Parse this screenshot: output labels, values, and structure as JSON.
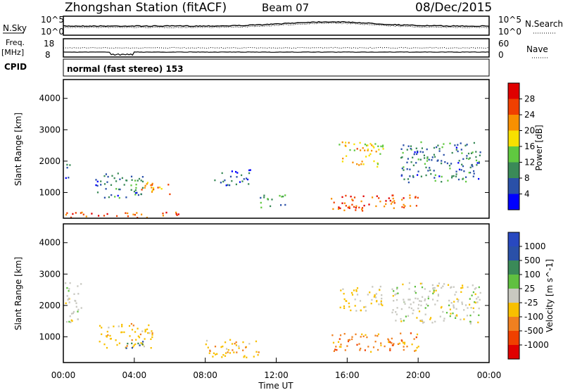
{
  "header": {
    "station": "Zhongshan Station (fitACF)",
    "beam": "Beam 07",
    "date": "08/Dec/2015"
  },
  "top_panels": {
    "noise": {
      "left_label": "N.Sky",
      "right_label": "N.Search",
      "left_ticks": [
        "10^5",
        "10^0"
      ],
      "right_ticks": [
        "10^5",
        "10^0"
      ]
    },
    "freq": {
      "left_label_1": "Freq.",
      "left_label_2": "[MHz]",
      "right_label": "Nave",
      "left_ticks": [
        "18",
        "8"
      ],
      "right_ticks": [
        "60",
        "0"
      ]
    },
    "cpid": {
      "label": "CPID",
      "text": "normal (fast stereo) 153"
    }
  },
  "colors": {
    "power": [
      "#0000ff",
      "#2a50a8",
      "#3a8a58",
      "#60c840",
      "#f8e000",
      "#f89000",
      "#f04000",
      "#e00000"
    ],
    "velocity": [
      "#e00000",
      "#f04000",
      "#f08020",
      "#f8c000",
      "#c8c8c0",
      "#60c040",
      "#3a8a58",
      "#2a50a8",
      "#2848c0"
    ]
  },
  "chart_data": [
    {
      "type": "heatmap",
      "ylabel": "Slant Range [km]",
      "xlabel": "",
      "ylim": [
        180,
        4600
      ],
      "yticks": [
        1000,
        2000,
        3000,
        4000
      ],
      "x_ticks": [
        "00:00",
        "04:00",
        "08:00",
        "12:00",
        "16:00",
        "20:00",
        "00:00"
      ],
      "colorbar": {
        "label": "Power [dB]",
        "ticks": [
          "4",
          "8",
          "12",
          "16",
          "20",
          "24",
          "28"
        ],
        "range": [
          0,
          30
        ]
      },
      "scatter_regions_power_db": [
        {
          "t": [
            0.0,
            0.4
          ],
          "r": [
            1400,
            1900
          ],
          "value": 6
        },
        {
          "t": [
            1.8,
            4.5
          ],
          "r": [
            800,
            1600
          ],
          "value": 8
        },
        {
          "t": [
            4.2,
            6.0
          ],
          "r": [
            900,
            1300
          ],
          "value": 20
        },
        {
          "t": [
            0.0,
            7.0
          ],
          "r": [
            180,
            350
          ],
          "value": 24
        },
        {
          "t": [
            8.5,
            10.5
          ],
          "r": [
            1200,
            1700
          ],
          "value": 6
        },
        {
          "t": [
            11.0,
            12.5
          ],
          "r": [
            500,
            900
          ],
          "value": 10
        },
        {
          "t": [
            15.0,
            20.0
          ],
          "r": [
            400,
            900
          ],
          "value": 24
        },
        {
          "t": [
            15.5,
            18.0
          ],
          "r": [
            1800,
            2600
          ],
          "value": 18
        },
        {
          "t": [
            19.0,
            23.5
          ],
          "r": [
            1300,
            2600
          ],
          "value": 8
        }
      ]
    },
    {
      "type": "heatmap",
      "ylabel": "Slant Range [km]",
      "xlabel": "Time UT",
      "ylim": [
        180,
        4600
      ],
      "yticks": [
        1000,
        2000,
        3000,
        4000
      ],
      "x_ticks": [
        "00:00",
        "04:00",
        "08:00",
        "12:00",
        "16:00",
        "20:00",
        "00:00"
      ],
      "colorbar": {
        "label": "Velocity [m s^-1]",
        "ticks": [
          "1000",
          "500",
          "100",
          "25",
          "-25",
          "-100",
          "-500",
          "-1000"
        ],
        "range": [
          -1200,
          1200
        ]
      },
      "scatter_regions_velocity_ms": [
        {
          "t": [
            0.0,
            1.0
          ],
          "r": [
            1400,
            2700
          ],
          "value": 0
        },
        {
          "t": [
            2.0,
            5.0
          ],
          "r": [
            600,
            1400
          ],
          "value": -300
        },
        {
          "t": [
            3.5,
            4.5
          ],
          "r": [
            600,
            900
          ],
          "value": 700
        },
        {
          "t": [
            8.0,
            11.0
          ],
          "r": [
            300,
            900
          ],
          "value": -300
        },
        {
          "t": [
            15.0,
            20.0
          ],
          "r": [
            500,
            1100
          ],
          "value": -500
        },
        {
          "t": [
            15.5,
            18.0
          ],
          "r": [
            1800,
            2600
          ],
          "value": -200
        },
        {
          "t": [
            18.5,
            23.5
          ],
          "r": [
            1400,
            2700
          ],
          "value": 0
        }
      ]
    }
  ]
}
